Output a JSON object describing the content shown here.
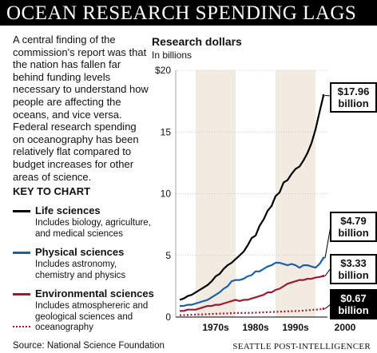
{
  "title": "OCEAN RESEARCH SPENDING LAGS",
  "intro": "A central finding of the commission's report was that the nation has fallen far behind funding levels necessary to understand how people are affecting the oceans, and vice versa. Federal research spending on oceanography has been relatively flat compared to budget increases for other areas of science.",
  "key_heading": "KEY TO CHART",
  "key": [
    {
      "label": "Life sciences",
      "desc": "Includes biology, agriculture, and medical sciences",
      "color": "#000000",
      "style": "solid"
    },
    {
      "label": "Physical sciences",
      "desc": "Includes astronomy, chemistry and physics",
      "color": "#1f5fa6",
      "style": "solid"
    },
    {
      "label": "Environmental sciences",
      "desc": "Includes atmosphereric and geological sciences and oceanography",
      "color": "#9b1b30",
      "style": "solid"
    },
    {
      "label": "",
      "desc": "",
      "color": "#9b1b30",
      "style": "dotted"
    }
  ],
  "source": "Source: National Science Foundation",
  "credit": "SEATTLE POST-INTELLIGENCER",
  "chart_data": {
    "type": "line",
    "title": "Research dollars",
    "ylabel": "In billions",
    "ylim": [
      0,
      20
    ],
    "yticks": [
      "$20",
      "15",
      "10",
      "5",
      "0"
    ],
    "xlim": [
      1965,
      2003
    ],
    "decades": [
      "1970s",
      "1980s",
      "1990s",
      "2000"
    ],
    "decade_x": [
      1975,
      1985,
      1995,
      2003
    ],
    "shaded_decades": [
      [
        1970,
        1980
      ],
      [
        1990,
        2000
      ]
    ],
    "series": [
      {
        "name": "Life sciences",
        "color": "#000000",
        "dash": "",
        "x": [
          1966,
          1967,
          1968,
          1969,
          1970,
          1971,
          1972,
          1973,
          1974,
          1975,
          1976,
          1977,
          1978,
          1979,
          1980,
          1981,
          1982,
          1983,
          1984,
          1985,
          1986,
          1987,
          1988,
          1989,
          1990,
          1991,
          1992,
          1993,
          1994,
          1995,
          1996,
          1997,
          1998,
          1999,
          2000,
          2001,
          2002
        ],
        "values": [
          1.4,
          1.5,
          1.7,
          1.8,
          2.0,
          2.2,
          2.4,
          2.6,
          2.9,
          3.3,
          3.5,
          3.9,
          4.2,
          4.4,
          4.7,
          5.0,
          5.3,
          5.8,
          6.4,
          6.6,
          7.4,
          7.9,
          8.6,
          9.0,
          9.8,
          10.1,
          10.9,
          11.1,
          11.6,
          12.0,
          12.2,
          12.7,
          13.3,
          14.1,
          15.2,
          16.6,
          17.96
        ],
        "label": "$17.96 billion"
      },
      {
        "name": "Physical sciences",
        "color": "#1f5fa6",
        "dash": "",
        "x": [
          1966,
          1967,
          1968,
          1969,
          1970,
          1971,
          1972,
          1973,
          1974,
          1975,
          1976,
          1977,
          1978,
          1979,
          1980,
          1981,
          1982,
          1983,
          1984,
          1985,
          1986,
          1987,
          1988,
          1989,
          1990,
          1991,
          1992,
          1993,
          1994,
          1995,
          1996,
          1997,
          1998,
          1999,
          2000,
          2001,
          2002
        ],
        "values": [
          0.9,
          0.9,
          1.0,
          1.0,
          1.1,
          1.2,
          1.3,
          1.4,
          1.6,
          1.8,
          2.0,
          2.3,
          2.5,
          2.9,
          3.0,
          3.0,
          3.1,
          3.3,
          3.4,
          3.7,
          3.7,
          3.9,
          4.1,
          4.2,
          4.4,
          4.4,
          4.3,
          4.2,
          4.3,
          4.2,
          4.0,
          4.2,
          4.2,
          4.1,
          4.0,
          4.3,
          4.79
        ],
        "label": "$4.79 billion"
      },
      {
        "name": "Environmental sciences",
        "color": "#9b1b30",
        "dash": "",
        "x": [
          1966,
          1967,
          1968,
          1969,
          1970,
          1971,
          1972,
          1973,
          1974,
          1975,
          1976,
          1977,
          1978,
          1979,
          1980,
          1981,
          1982,
          1983,
          1984,
          1985,
          1986,
          1987,
          1988,
          1989,
          1990,
          1991,
          1992,
          1993,
          1994,
          1995,
          1996,
          1997,
          1998,
          1999,
          2000,
          2001,
          2002
        ],
        "values": [
          0.5,
          0.5,
          0.6,
          0.6,
          0.6,
          0.7,
          0.8,
          0.9,
          0.9,
          1.0,
          1.0,
          1.1,
          1.2,
          1.3,
          1.4,
          1.3,
          1.4,
          1.4,
          1.5,
          1.6,
          1.7,
          1.8,
          2.0,
          2.0,
          2.2,
          2.3,
          2.5,
          2.7,
          2.8,
          2.9,
          3.0,
          3.0,
          3.1,
          3.1,
          3.2,
          3.25,
          3.33
        ],
        "label": "$3.33 billion"
      },
      {
        "name": "oceanography",
        "color": "#9b1b30",
        "dash": "2,2.5",
        "x": [
          1966,
          1968,
          1970,
          1972,
          1974,
          1976,
          1978,
          1980,
          1982,
          1984,
          1986,
          1988,
          1990,
          1992,
          1994,
          1996,
          1998,
          2000,
          2001,
          2002
        ],
        "values": [
          0.15,
          0.17,
          0.2,
          0.22,
          0.25,
          0.28,
          0.3,
          0.33,
          0.33,
          0.35,
          0.37,
          0.4,
          0.42,
          0.45,
          0.48,
          0.5,
          0.55,
          0.6,
          0.63,
          0.67
        ],
        "label": "$0.67 billion"
      }
    ]
  }
}
